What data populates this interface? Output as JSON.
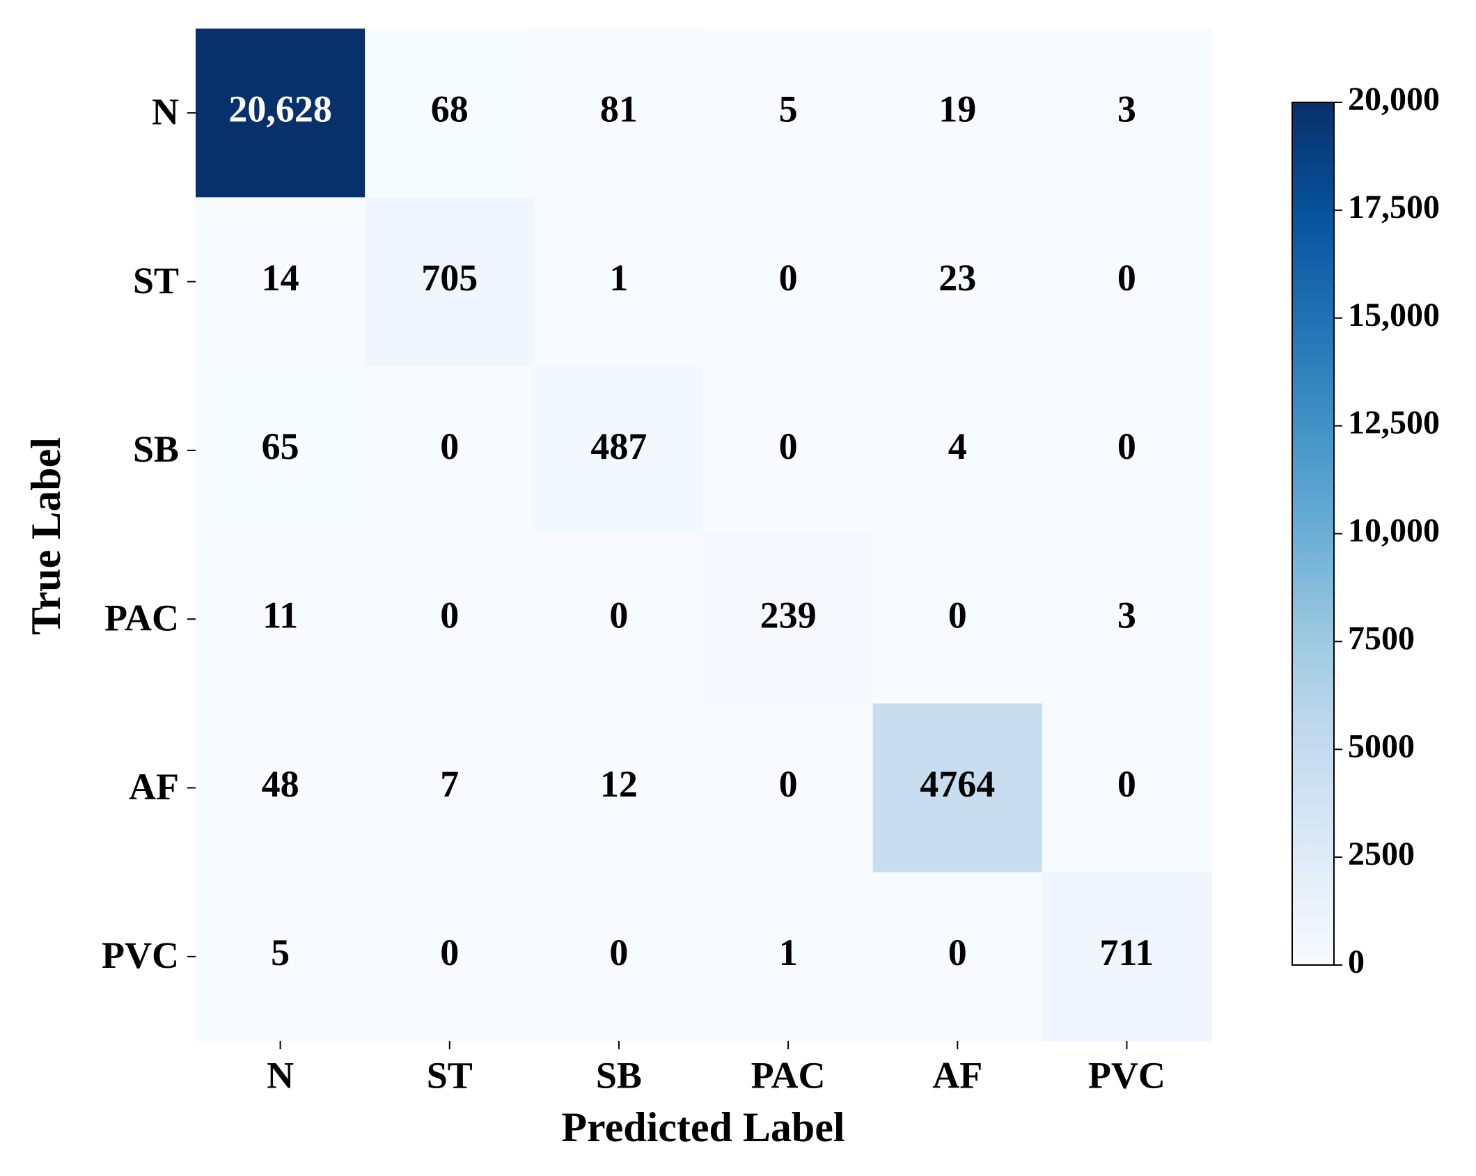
{
  "chart_data": {
    "type": "heatmap",
    "x_label": "Predicted Label",
    "y_label": "True Label",
    "x_categories": [
      "N",
      "ST",
      "SB",
      "PAC",
      "AF",
      "PVC"
    ],
    "y_categories": [
      "N",
      "ST",
      "SB",
      "PAC",
      "AF",
      "PVC"
    ],
    "values": [
      [
        20628,
        68,
        81,
        5,
        19,
        3
      ],
      [
        14,
        705,
        1,
        0,
        23,
        0
      ],
      [
        65,
        0,
        487,
        0,
        4,
        0
      ],
      [
        11,
        0,
        0,
        239,
        0,
        3
      ],
      [
        48,
        7,
        12,
        0,
        4764,
        0
      ],
      [
        5,
        0,
        0,
        1,
        0,
        711
      ]
    ],
    "value_labels": [
      [
        "20,628",
        "68",
        "81",
        "5",
        "19",
        "3"
      ],
      [
        "14",
        "705",
        "1",
        "0",
        "23",
        "0"
      ],
      [
        "65",
        "0",
        "487",
        "0",
        "4",
        "0"
      ],
      [
        "11",
        "0",
        "0",
        "239",
        "0",
        "3"
      ],
      [
        "48",
        "7",
        "12",
        "0",
        "4764",
        "0"
      ],
      [
        "5",
        "0",
        "0",
        "1",
        "0",
        "711"
      ]
    ],
    "colormap": "Blues",
    "clim": [
      0,
      20000
    ],
    "cticks": [
      0,
      2500,
      5000,
      7500,
      {
        "value": 10000,
        "label": "10,000"
      },
      {
        "value": 12500,
        "label": "12,500"
      },
      {
        "value": 15000,
        "label": "15,000"
      },
      {
        "value": 17500,
        "label": "17,500"
      },
      {
        "value": 20000,
        "label": "20,000"
      }
    ]
  }
}
